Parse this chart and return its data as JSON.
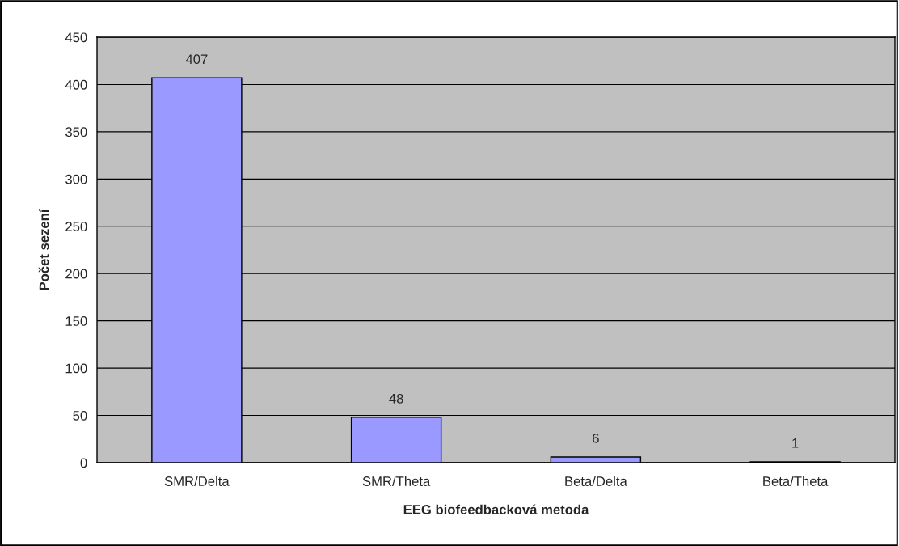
{
  "chart_data": {
    "type": "bar",
    "xlabel": "EEG biofeedbacková metoda",
    "ylabel": "Počet sezení",
    "categories": [
      "SMR/Delta",
      "SMR/Theta",
      "Beta/Delta",
      "Beta/Theta"
    ],
    "values": [
      407,
      48,
      6,
      1
    ],
    "color": "#9999ff",
    "ylim": [
      0,
      450
    ],
    "yticks": [
      0,
      50,
      100,
      150,
      200,
      250,
      300,
      350,
      400,
      450
    ],
    "grid": "y",
    "data_labels": true
  }
}
